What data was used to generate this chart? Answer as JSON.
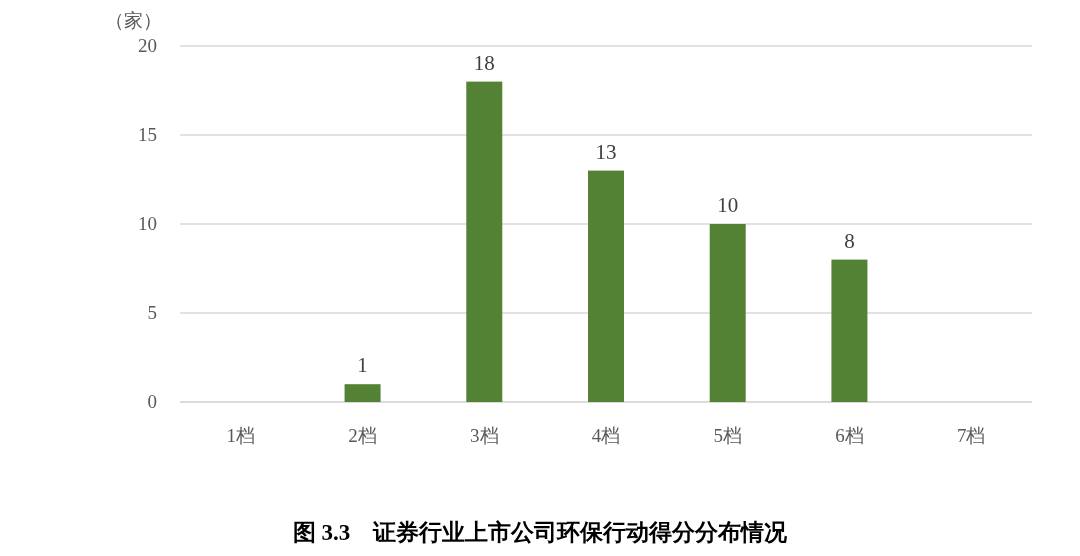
{
  "chart_data": {
    "type": "bar",
    "title": "图 3.3　证券行业上市公司环保行动得分分布情况",
    "ylabel": "（家）",
    "categories": [
      "1档",
      "2档",
      "3档",
      "4档",
      "5档",
      "6档",
      "7档"
    ],
    "values": [
      0,
      1,
      18,
      13,
      10,
      8,
      0
    ],
    "value_labels": [
      null,
      "1",
      "18",
      "13",
      "10",
      "8",
      null
    ],
    "color": "#548235",
    "ylim": [
      0,
      20
    ],
    "yticks": [
      0,
      5,
      10,
      15,
      20
    ],
    "grid": "y"
  }
}
